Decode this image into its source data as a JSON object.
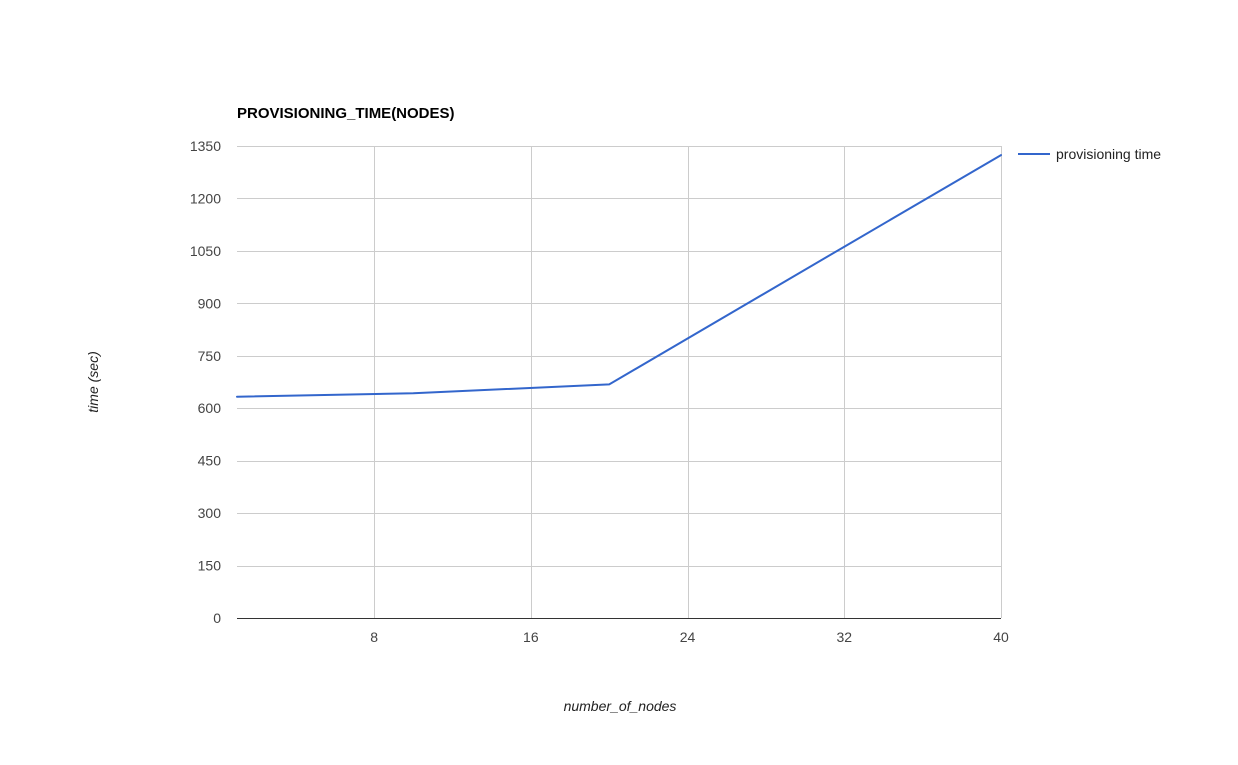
{
  "chart_data": {
    "type": "line",
    "title": "PROVISIONING_TIME(NODES)",
    "xlabel": "number_of_nodes",
    "ylabel": "time (sec)",
    "xlim": [
      1,
      40
    ],
    "ylim": [
      0,
      1350
    ],
    "x_ticks": [
      8,
      16,
      24,
      32,
      40
    ],
    "y_ticks": [
      0,
      150,
      300,
      450,
      600,
      750,
      900,
      1050,
      1200,
      1350
    ],
    "grid": true,
    "legend_position": "right",
    "series": [
      {
        "name": "provisioning time",
        "color": "#3366cc",
        "x": [
          1,
          10,
          20,
          32,
          40
        ],
        "y": [
          633,
          643,
          668,
          1062,
          1324
        ]
      }
    ]
  }
}
